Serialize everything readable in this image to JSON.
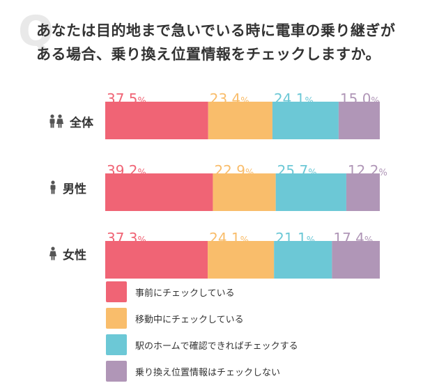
{
  "question": {
    "mark": "Q",
    "line1": "あなたは目的地まで急いでいる時に電車の乗り継ぎが",
    "line2": "ある場合、乗り換え位置情報をチェックしますか。"
  },
  "colors": {
    "check_before": "#f06475",
    "check_moving": "#f9bd6b",
    "check_platform": "#6cc8d6",
    "no_check": "#b096b7",
    "icon": "#555555"
  },
  "chart_data": {
    "type": "bar",
    "stacked": true,
    "orientation": "horizontal",
    "normalized": true,
    "categories": [
      "全体",
      "男性",
      "女性"
    ],
    "category_icons": [
      "people-icon",
      "male-icon",
      "female-icon"
    ],
    "series": [
      {
        "name": "事前にチェックしている",
        "values": [
          37.5,
          39.2,
          37.3
        ],
        "labels": [
          "37.5%",
          "39.2%",
          "37.3%"
        ],
        "color": "#f06475"
      },
      {
        "name": "移動中にチェックしている",
        "values": [
          23.4,
          22.9,
          24.1
        ],
        "labels": [
          "23.4%",
          "22.9%",
          "24.1%"
        ],
        "color": "#f9bd6b"
      },
      {
        "name": "駅のホームで確認できればチェックする",
        "values": [
          24.1,
          25.7,
          21.1
        ],
        "labels": [
          "24.1%",
          "25.7%",
          "21.1%"
        ],
        "color": "#6cc8d6"
      },
      {
        "name": "乗り換え位置情報はチェックしない",
        "values": [
          15.0,
          12.2,
          17.4
        ],
        "labels": [
          "15.0%",
          "12.2%",
          "17.4%"
        ],
        "color": "#b096b7"
      }
    ],
    "xlim": [
      0,
      100
    ],
    "grid": false,
    "legend_position": "bottom-left"
  }
}
